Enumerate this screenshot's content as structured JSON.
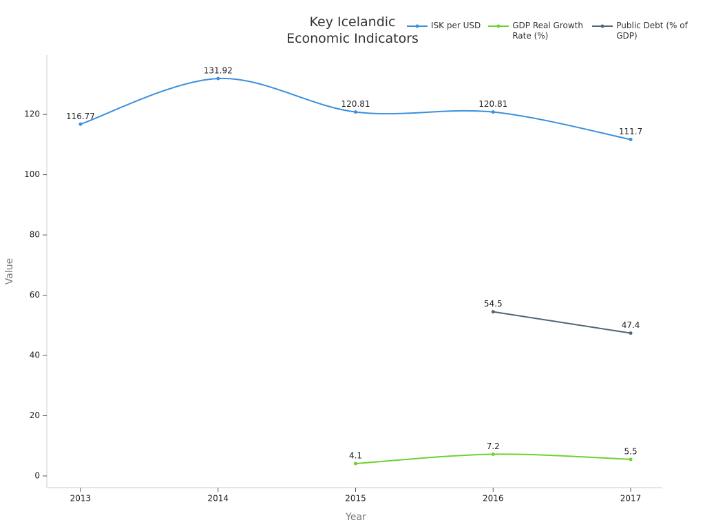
{
  "chart_data": {
    "type": "line",
    "title": "Key Icelandic Economic Indicators",
    "x_label": "Year",
    "y_label": "Value",
    "x": [
      2013,
      2014,
      2015,
      2016,
      2017
    ],
    "xlim": [
      2012.755,
      2017.23
    ],
    "xticks": [
      2013,
      2014,
      2015,
      2016,
      2017
    ],
    "ylim": [
      -3.9,
      139.7
    ],
    "yticks": [
      0,
      20,
      40,
      60,
      80,
      100,
      120
    ],
    "grid": false,
    "legend": "top-right",
    "series": [
      {
        "name": "ISK per USD",
        "color": "#3a8fdc",
        "values": [
          116.77,
          131.92,
          120.81,
          120.81,
          111.7
        ]
      },
      {
        "name": "GDP Real Growth Rate (%)",
        "color": "#6cd22e",
        "values": [
          null,
          null,
          4.1,
          7.2,
          5.5
        ]
      },
      {
        "name": "Public Debt (% of GDP)",
        "color": "#506672",
        "values": [
          null,
          null,
          null,
          54.5,
          47.4
        ]
      }
    ]
  }
}
